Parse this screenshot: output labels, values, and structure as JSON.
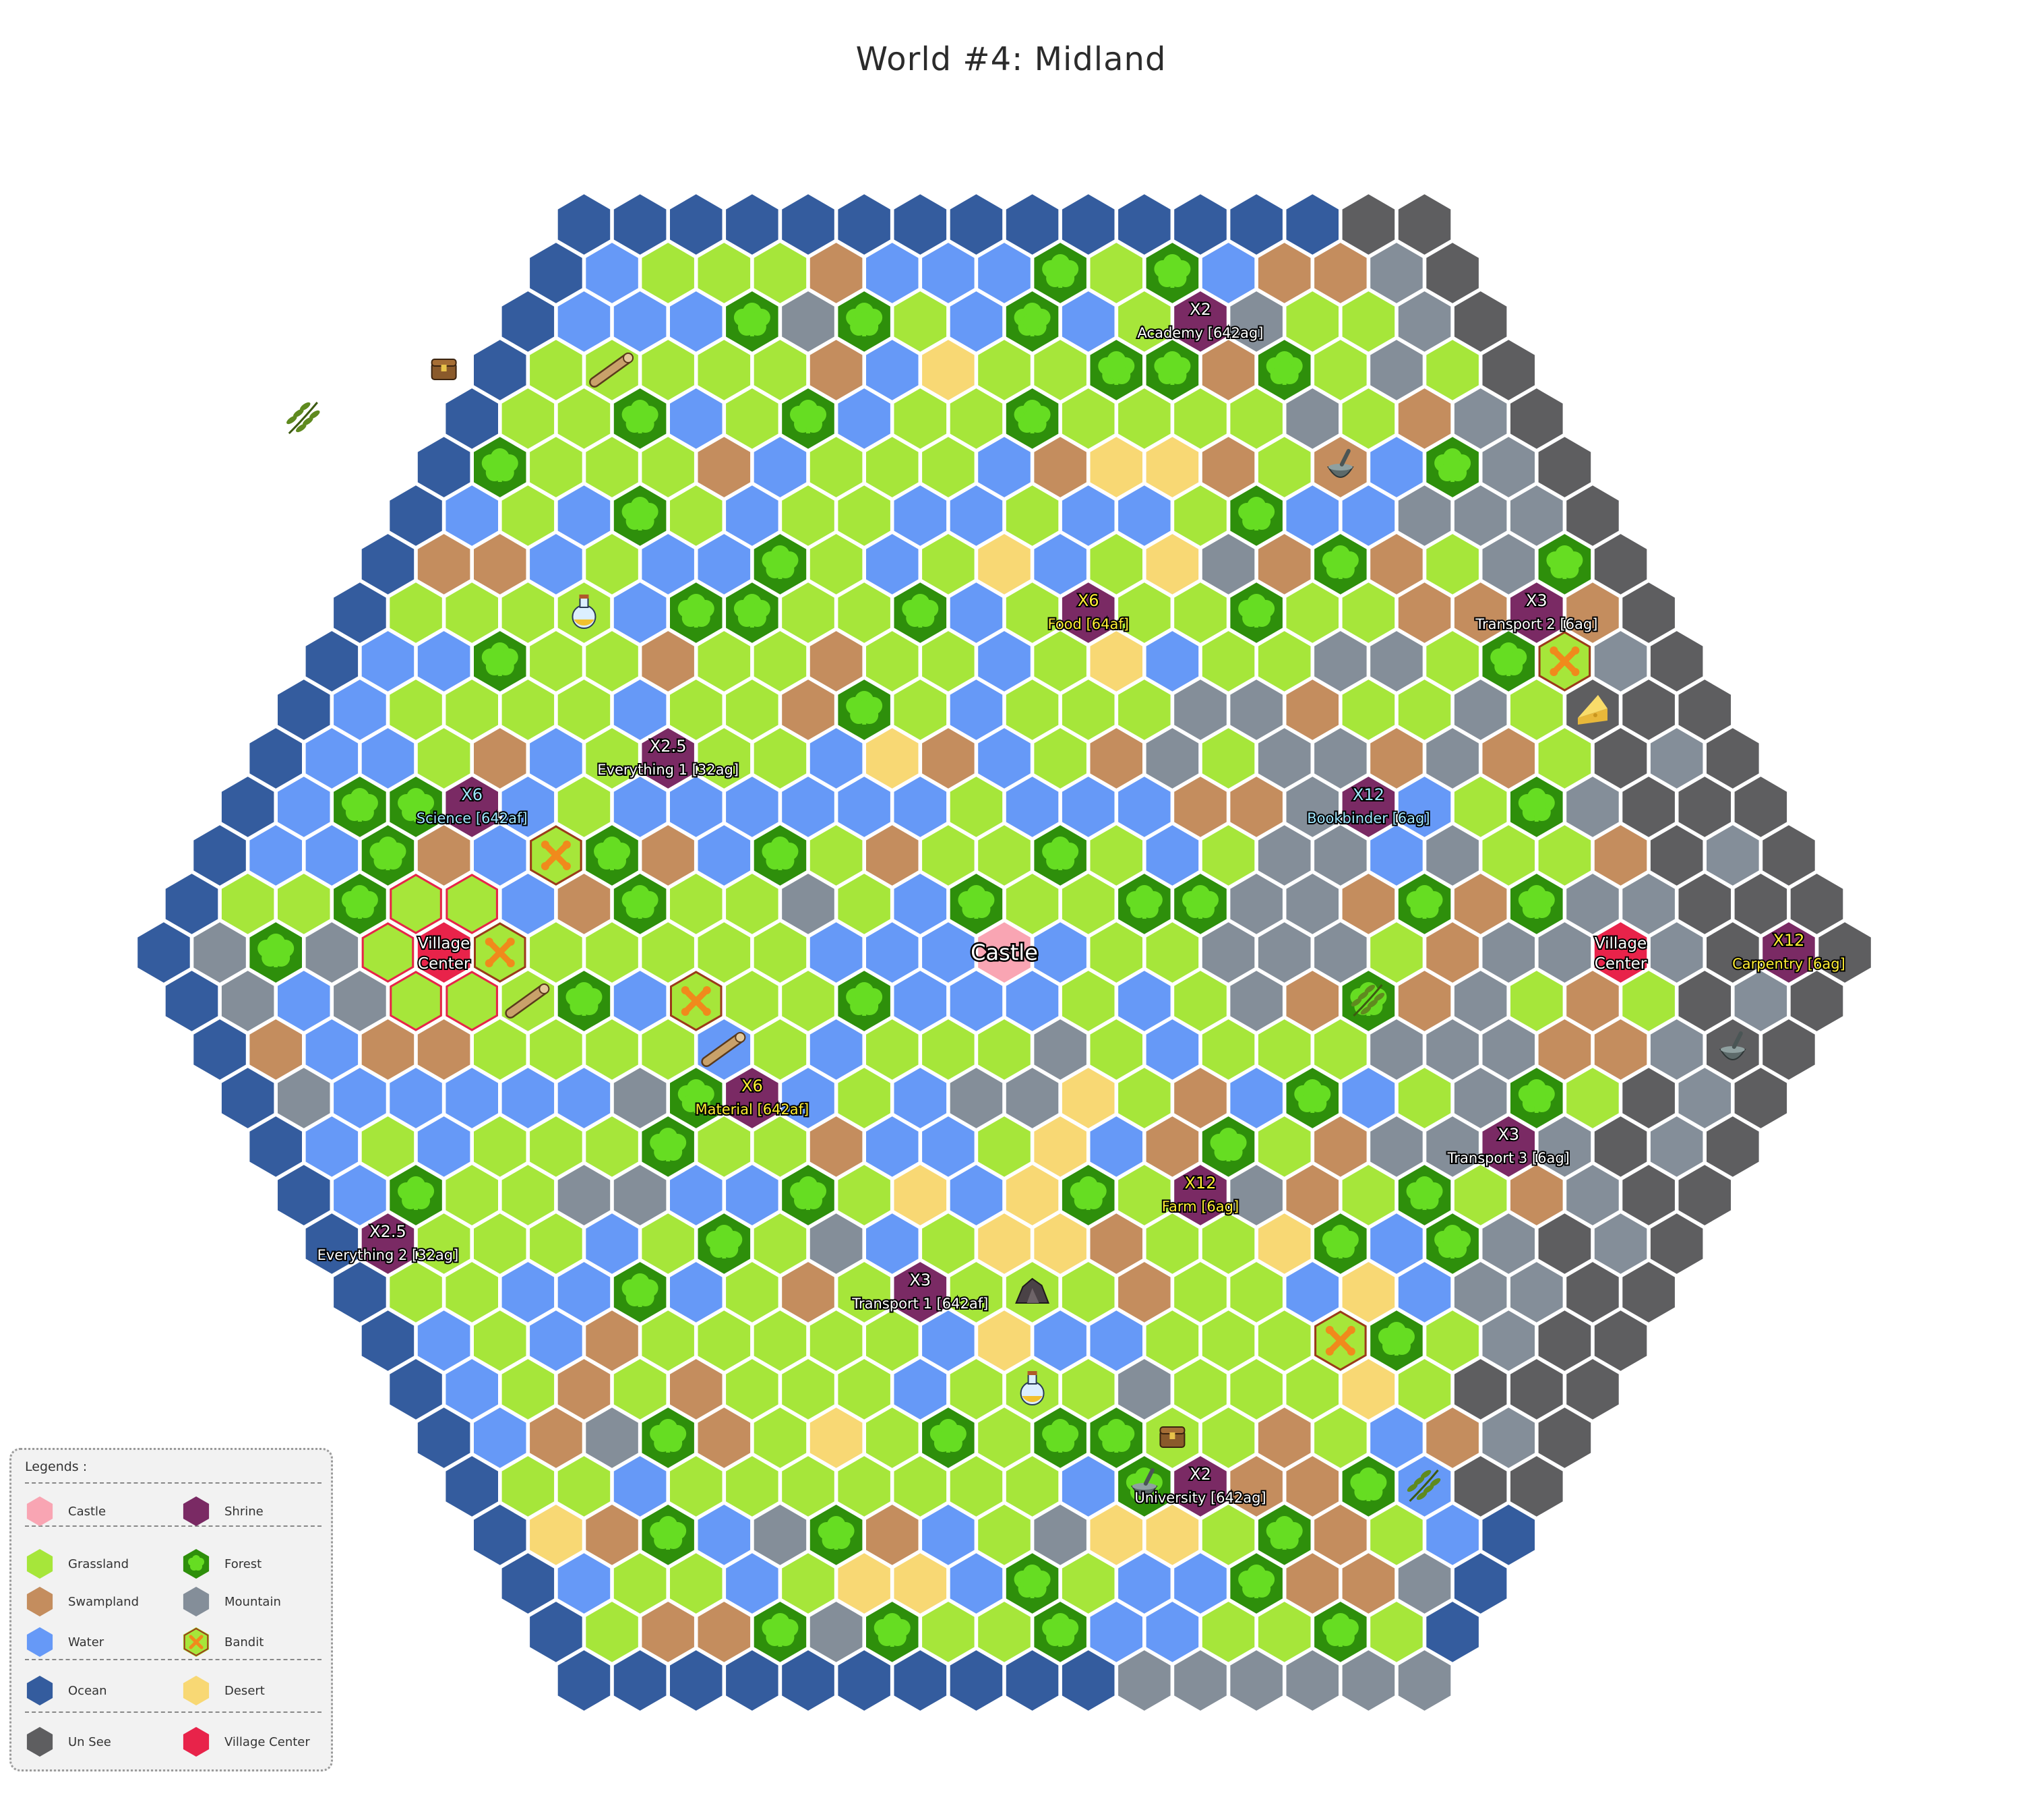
{
  "title": "World #4: Midland",
  "colors": {
    "ocean": "#345c9e",
    "water": "#6699f7",
    "grassland": "#a6e63a",
    "forest": "#2e8f0b",
    "forest_tree": "#66dd22",
    "swampland": "#c48d5e",
    "mountain": "#848e99",
    "desert": "#f8d874",
    "unsee": "#5e5e60",
    "castle": "#f9a5b3",
    "village": "#e8234a",
    "shrine": "#7a2a64",
    "bandit_fill": "#a6e63a",
    "bandit_border": "#9b3a1a",
    "bandit_icon": "#f08a1c"
  },
  "legend": {
    "title": "Legends :",
    "items": [
      {
        "label": "Castle",
        "terrain": "castle"
      },
      {
        "label": "Shrine",
        "terrain": "shrine"
      },
      {
        "label": "Grassland",
        "terrain": "grassland"
      },
      {
        "label": "Forest",
        "terrain": "forest"
      },
      {
        "label": "Swampland",
        "terrain": "swampland"
      },
      {
        "label": "Mountain",
        "terrain": "mountain"
      },
      {
        "label": "Water",
        "terrain": "water"
      },
      {
        "label": "Bandit",
        "terrain": "bandit"
      },
      {
        "label": "Ocean",
        "terrain": "ocean"
      },
      {
        "label": "Desert",
        "terrain": "desert"
      },
      {
        "label": "Un See",
        "terrain": "unsee"
      },
      {
        "label": "Village Center",
        "terrain": "village"
      }
    ]
  },
  "castle": {
    "label": "Castle",
    "q": 0,
    "r": 0
  },
  "villages": [
    {
      "label": [
        "Village",
        "Center"
      ],
      "q": -10,
      "r": 0
    },
    {
      "label": [
        "Village",
        "Center"
      ],
      "q": 11,
      "r": 0
    }
  ],
  "shrines": [
    {
      "mult": "X2",
      "name": "Academy [642ag]",
      "q": 10,
      "r": -13,
      "color": "white"
    },
    {
      "mult": "X6",
      "name": "Food [64af]",
      "q": 5,
      "r": -7,
      "color": "yellow"
    },
    {
      "mult": "X3",
      "name": "Transport 2 [6ag]",
      "q": 13,
      "r": -7,
      "color": "white"
    },
    {
      "mult": "X2.5",
      "name": "Everything 1 [32ag]",
      "q": -4,
      "r": -4,
      "color": "white"
    },
    {
      "mult": "X6",
      "name": "Science [642af]",
      "q": -8,
      "r": -3,
      "color": "cyan"
    },
    {
      "mult": "X12",
      "name": "Bookbinder [6ag]",
      "q": 8,
      "r": -3,
      "color": "cyan"
    },
    {
      "mult": "X12",
      "name": "Carpentry [6ag]",
      "q": 14,
      "r": 0,
      "color": "yellow"
    },
    {
      "mult": "X6",
      "name": "Material [642af]",
      "q": -6,
      "r": 3,
      "color": "yellow"
    },
    {
      "mult": "X3",
      "name": "Transport 3 [6ag]",
      "q": 7,
      "r": 4,
      "color": "white"
    },
    {
      "mult": "X12",
      "name": "Farm [6ag]",
      "q": 1,
      "r": 5,
      "color": "yellow"
    },
    {
      "mult": "X2.5",
      "name": "Everything 2 [32ag]",
      "q": -14,
      "r": 6,
      "color": "white"
    },
    {
      "mult": "X3",
      "name": "Transport 1 [642af]",
      "q": -5,
      "r": 7,
      "color": "white"
    },
    {
      "mult": "X2",
      "name": "University [642ag]",
      "q": -2,
      "r": 11,
      "color": "white"
    }
  ],
  "bandits": [
    {
      "q": 13,
      "r": -6
    },
    {
      "q": -7,
      "r": -2
    },
    {
      "q": -9,
      "r": 0
    },
    {
      "q": -6,
      "r": 1
    },
    {
      "q": 2,
      "r": 8
    }
  ],
  "items": [
    {
      "icon": "treasure-chest-icon",
      "q": -4,
      "r": -12
    },
    {
      "icon": "log-icon",
      "q": -1,
      "r": -12
    },
    {
      "icon": "herb-icon",
      "q": -7,
      "r": -11
    },
    {
      "icon": "potion-icon",
      "q": -4,
      "r": -7
    },
    {
      "icon": "cheese-icon",
      "q": 13,
      "r": -5
    },
    {
      "icon": "mortar-icon",
      "q": 11,
      "r": -10
    },
    {
      "icon": "herb-icon",
      "q": 6,
      "r": 1
    },
    {
      "icon": "mortar-icon",
      "q": 12,
      "r": 2
    },
    {
      "icon": "log-icon",
      "q": -9,
      "r": 1
    },
    {
      "icon": "log-icon",
      "q": -6,
      "r": 2
    },
    {
      "icon": "rock-icon",
      "q": -3,
      "r": 7
    },
    {
      "icon": "potion-icon",
      "q": -4,
      "r": 9
    },
    {
      "icon": "mortar-icon",
      "q": -3,
      "r": 11
    },
    {
      "icon": "treasure-chest-icon",
      "q": -2,
      "r": 10
    },
    {
      "icon": "herb-icon",
      "q": 2,
      "r": 11
    }
  ]
}
